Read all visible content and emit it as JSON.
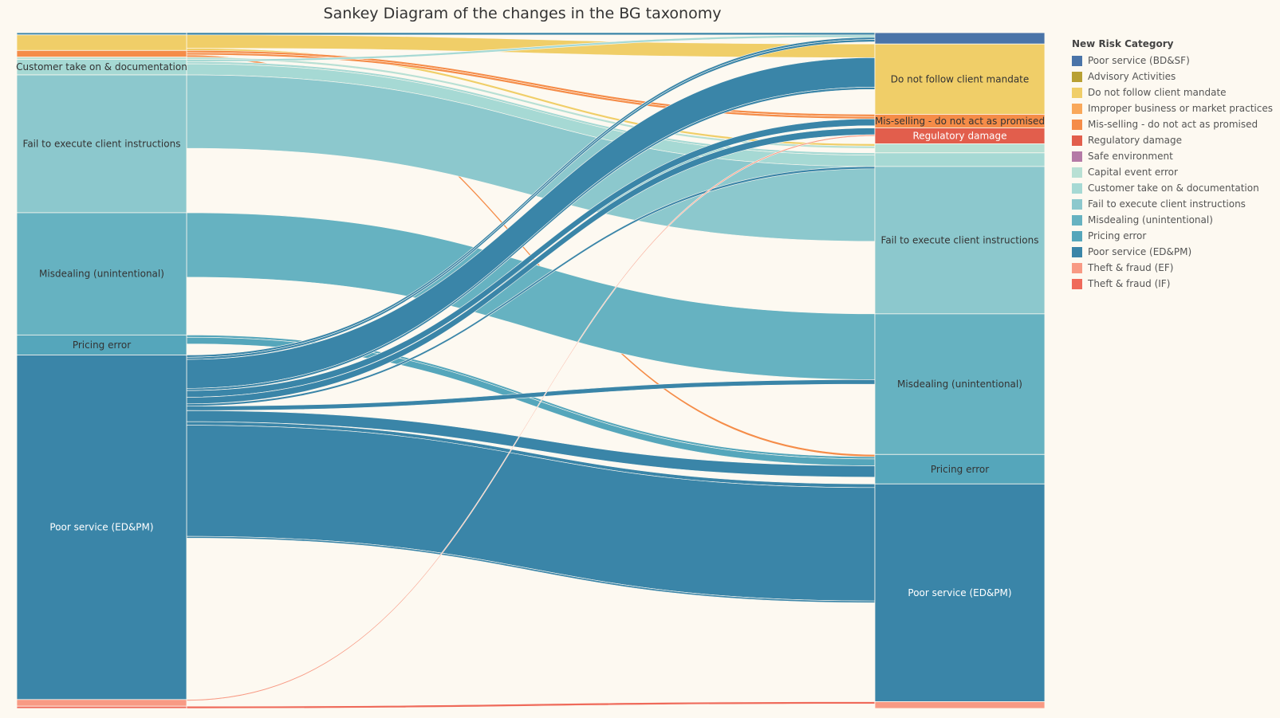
{
  "title": "Sankey Diagram of the changes in the BG taxonomy",
  "colors": {
    "poor_bdsf": "#4a74a8",
    "advisory": "#b8a034",
    "client_mandate": "#f0ce68",
    "improper": "#f9a85a",
    "misselling": "#f58c48",
    "regulatory": "#e25e4c",
    "safe_env": "#b47aa6",
    "capital": "#b8e0d4",
    "customer": "#a6d9d4",
    "fail_execute": "#8cc8cd",
    "misdealing": "#66b2c1",
    "pricing": "#55a6bb",
    "poor_edpm": "#3a85a8",
    "theft_ef": "#f89a84",
    "theft_if": "#ef6a5a"
  },
  "legend": {
    "title": "New Risk Category",
    "items": [
      {
        "label": "Poor service (BD&SF)",
        "color": "poor_bdsf"
      },
      {
        "label": "Advisory Activities",
        "color": "advisory"
      },
      {
        "label": "Do not follow client mandate",
        "color": "client_mandate"
      },
      {
        "label": "Improper business or market practices",
        "color": "improper"
      },
      {
        "label": "Mis-selling - do not act as promised",
        "color": "misselling"
      },
      {
        "label": "Regulatory damage",
        "color": "regulatory"
      },
      {
        "label": "Safe environment",
        "color": "safe_env"
      },
      {
        "label": "Capital event error",
        "color": "capital"
      },
      {
        "label": "Customer take on & documentation",
        "color": "customer"
      },
      {
        "label": "Fail to execute client instructions",
        "color": "fail_execute"
      },
      {
        "label": "Misdealing (unintentional)",
        "color": "misdealing"
      },
      {
        "label": "Pricing error",
        "color": "pricing"
      },
      {
        "label": "Poor service (ED&PM)",
        "color": "poor_edpm"
      },
      {
        "label": "Theft & fraud (EF)",
        "color": "theft_ef"
      },
      {
        "label": "Theft & fraud (IF)",
        "color": "theft_if"
      }
    ]
  },
  "chart_data": {
    "type": "sankey",
    "title": "Sankey Diagram of the changes in the BG taxonomy",
    "old_categories": [
      {
        "label": "",
        "value": 0.5,
        "color": "poor_edpm"
      },
      {
        "label": "",
        "value": 3.5,
        "color": "client_mandate"
      },
      {
        "label": "",
        "value": 1.5,
        "color": "misselling"
      },
      {
        "label": "",
        "value": 0.5,
        "color": "capital"
      },
      {
        "label": "Customer take on & documentation",
        "value": 3.5,
        "color": "customer"
      },
      {
        "label": "Fail to execute client instructions",
        "value": 31,
        "color": "fail_execute"
      },
      {
        "label": "Misdealing (unintentional)",
        "value": 27.5,
        "color": "misdealing"
      },
      {
        "label": "Pricing error",
        "value": 4.5,
        "color": "pricing"
      },
      {
        "label": "Poor service (ED&PM)",
        "value": 77.5,
        "color": "poor_edpm"
      },
      {
        "label": "",
        "value": 1.5,
        "color": "theft_ef"
      },
      {
        "label": "",
        "value": 0.5,
        "color": "theft_if"
      }
    ],
    "new_categories": [
      {
        "label": "",
        "value": 2.5,
        "color": "poor_bdsf"
      },
      {
        "label": "Do not follow client mandate",
        "value": 15.5,
        "color": "client_mandate"
      },
      {
        "label": "Mis-selling - do not act as promised",
        "value": 3,
        "color": "misselling"
      },
      {
        "label": "Regulatory damage",
        "value": 3.5,
        "color": "regulatory"
      },
      {
        "label": "",
        "value": 2,
        "color": "capital"
      },
      {
        "label": "",
        "value": 3,
        "color": "customer"
      },
      {
        "label": "Fail to execute client instructions",
        "value": 32.5,
        "color": "fail_execute"
      },
      {
        "label": "Misdealing (unintentional)",
        "value": 31,
        "color": "misdealing"
      },
      {
        "label": "Pricing error",
        "value": 6.5,
        "color": "pricing"
      },
      {
        "label": "Poor service (ED&PM)",
        "value": 48,
        "color": "poor_edpm"
      },
      {
        "label": "",
        "value": 1.5,
        "color": "theft_ef"
      }
    ],
    "flows": [
      {
        "from": 0,
        "to": 0,
        "value": 0.5
      },
      {
        "from": 1,
        "to": 1,
        "value": 3.0
      },
      {
        "from": 1,
        "to": 4,
        "value": 0.5
      },
      {
        "from": 2,
        "to": 2,
        "value": 0.5
      },
      {
        "from": 2,
        "to": 2,
        "value": 0.5
      },
      {
        "from": 2,
        "to": 8,
        "value": 0.5
      },
      {
        "from": 3,
        "to": 4,
        "value": 0.5
      },
      {
        "from": 4,
        "to": 0,
        "value": 0.5
      },
      {
        "from": 4,
        "to": 5,
        "value": 0.5
      },
      {
        "from": 4,
        "to": 5,
        "value": 2.5
      },
      {
        "from": 5,
        "to": 6,
        "value": 16.5
      },
      {
        "from": 6,
        "to": 7,
        "value": 14.5
      },
      {
        "from": 7,
        "to": 8,
        "value": 0.5
      },
      {
        "from": 7,
        "to": 8,
        "value": 1.5
      },
      {
        "from": 8,
        "to": 0,
        "value": 0.5
      },
      {
        "from": 8,
        "to": 0,
        "value": 0.5
      },
      {
        "from": 8,
        "to": 1,
        "value": 6.5
      },
      {
        "from": 8,
        "to": 1,
        "value": 0.5
      },
      {
        "from": 8,
        "to": 2,
        "value": 1.5
      },
      {
        "from": 8,
        "to": 3,
        "value": 1.5
      },
      {
        "from": 8,
        "to": 5,
        "value": 0.5
      },
      {
        "from": 8,
        "to": 7,
        "value": 1.0
      },
      {
        "from": 8,
        "to": 8,
        "value": 2.5
      },
      {
        "from": 8,
        "to": 9,
        "value": 0.8
      },
      {
        "from": 8,
        "to": 9,
        "value": 25
      },
      {
        "from": 8,
        "to": 9,
        "value": 0.4
      },
      {
        "from": 9,
        "to": 3,
        "value": 0.3
      },
      {
        "from": 10,
        "to": 10,
        "value": 0.5
      }
    ]
  }
}
